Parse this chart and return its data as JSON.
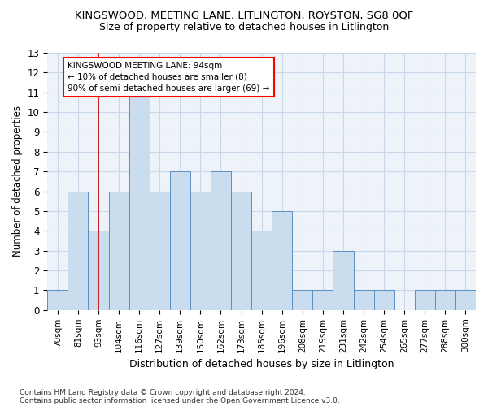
{
  "title": "KINGSWOOD, MEETING LANE, LITLINGTON, ROYSTON, SG8 0QF",
  "subtitle": "Size of property relative to detached houses in Litlington",
  "xlabel": "Distribution of detached houses by size in Litlington",
  "ylabel": "Number of detached properties",
  "categories": [
    "70sqm",
    "81sqm",
    "93sqm",
    "104sqm",
    "116sqm",
    "127sqm",
    "139sqm",
    "150sqm",
    "162sqm",
    "173sqm",
    "185sqm",
    "196sqm",
    "208sqm",
    "219sqm",
    "231sqm",
    "242sqm",
    "254sqm",
    "265sqm",
    "277sqm",
    "288sqm",
    "300sqm"
  ],
  "values": [
    1,
    6,
    4,
    6,
    11,
    6,
    7,
    6,
    7,
    6,
    4,
    5,
    1,
    1,
    3,
    1,
    1,
    0,
    1,
    1,
    1
  ],
  "bar_color_normal": "#c9ddef",
  "bar_edge_color": "#5a8fc0",
  "highlight_index": 2,
  "highlight_line_color": "#cc0000",
  "ylim": [
    0,
    13
  ],
  "yticks": [
    0,
    1,
    2,
    3,
    4,
    5,
    6,
    7,
    8,
    9,
    10,
    11,
    12,
    13
  ],
  "annotation_text": "KINGSWOOD MEETING LANE: 94sqm\n← 10% of detached houses are smaller (8)\n90% of semi-detached houses are larger (69) →",
  "footnote1": "Contains HM Land Registry data © Crown copyright and database right 2024.",
  "footnote2": "Contains public sector information licensed under the Open Government Licence v3.0.",
  "grid_color": "#c8d8e8",
  "background_color": "#eef3f9"
}
